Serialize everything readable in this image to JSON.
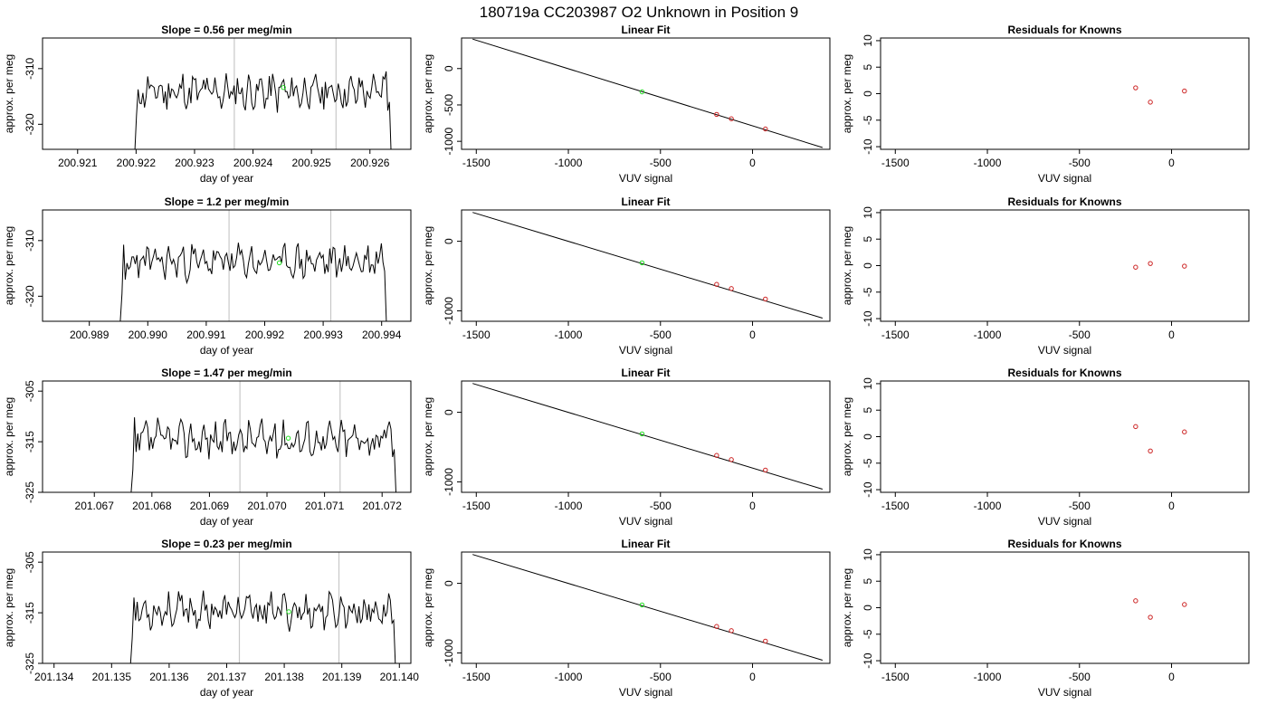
{
  "figure": {
    "title": "180719a      CC203987   O2 Unknown in Position  9"
  },
  "style": {
    "series_color": "#000000",
    "vline_color": "#c8c8c8",
    "known_point_color": "#cc2222",
    "unknown_point_color": "#22dd22",
    "fit_line_color": "#000000"
  },
  "chart_data": [
    {
      "type": "line",
      "panel": "time-series",
      "row": 1,
      "title": "Slope =  0.56  per meg/min",
      "xlabel": "day of year",
      "ylabel": "approx. per meg",
      "xlim": [
        200.9204,
        200.9267
      ],
      "ylim": [
        -324.5,
        -304.5
      ],
      "xticks": [
        "200.921",
        "200.922",
        "200.923",
        "200.924",
        "200.925",
        "200.926"
      ],
      "xtick_values": [
        200.921,
        200.922,
        200.923,
        200.924,
        200.925,
        200.926
      ],
      "yticks": [
        "-320",
        "-310"
      ],
      "ytick_values": [
        -320,
        -310
      ],
      "vlines": [
        200.92368,
        200.92542
      ],
      "trace_start": 200.92198,
      "trace_end": 200.92636,
      "trace_base": -314.2,
      "trace_amplitude": 2.6,
      "trace_rise": [
        -324.5,
        -318.5,
        -316.2
      ],
      "trace_fall": [
        -310.5,
        -316.0,
        -324.5
      ],
      "seed": 11,
      "marker": {
        "x": 200.92452,
        "y": -313.4
      }
    },
    {
      "type": "line",
      "panel": "linear-fit",
      "row": 1,
      "title": "Linear Fit",
      "xlabel": "VUV signal",
      "ylabel": "approx. per meg",
      "xlim": [
        -1580,
        420
      ],
      "ylim": [
        -1110,
        420
      ],
      "xticks": [
        "-1500",
        "-1000",
        "-500",
        "0"
      ],
      "xtick_values": [
        -1500,
        -1000,
        -500,
        0
      ],
      "yticks": [
        "-1000",
        "-500",
        "0"
      ],
      "ytick_values": [
        -1000,
        -500,
        0
      ],
      "line": {
        "x": [
          -1520,
          380
        ],
        "y": [
          405,
          -1085
        ]
      },
      "knowns": [
        {
          "x": -195,
          "y": -630
        },
        {
          "x": -115,
          "y": -690
        },
        {
          "x": 70,
          "y": -830
        }
      ],
      "unknown": {
        "x": -600,
        "y": -320
      }
    },
    {
      "type": "scatter",
      "panel": "residuals",
      "row": 1,
      "title": "Residuals for Knowns",
      "xlabel": "VUV signal",
      "ylabel": "approx. per meg",
      "xlim": [
        -1580,
        420
      ],
      "ylim": [
        -10.5,
        10.5
      ],
      "xticks": [
        "-1500",
        "-1000",
        "-500",
        "0"
      ],
      "xtick_values": [
        -1500,
        -1000,
        -500,
        0
      ],
      "yticks": [
        "-10",
        "-5",
        "0",
        "5",
        "10"
      ],
      "ytick_values": [
        -10,
        -5,
        0,
        5,
        10
      ],
      "points": [
        {
          "x": -195,
          "y": 1.1
        },
        {
          "x": -115,
          "y": -1.6
        },
        {
          "x": 70,
          "y": 0.5
        }
      ]
    },
    {
      "type": "line",
      "panel": "time-series",
      "row": 2,
      "title": "Slope =  1.2  per meg/min",
      "xlabel": "day of year",
      "ylabel": "approx. per meg",
      "xlim": [
        200.9882,
        200.9945
      ],
      "ylim": [
        -324.5,
        -304.5
      ],
      "xticks": [
        "200.989",
        "200.990",
        "200.991",
        "200.992",
        "200.993",
        "200.994"
      ],
      "xtick_values": [
        200.989,
        200.99,
        200.991,
        200.992,
        200.993,
        200.994
      ],
      "yticks": [
        "-320",
        "-310"
      ],
      "ytick_values": [
        -320,
        -310
      ],
      "vlines": [
        200.99139,
        200.99313
      ],
      "trace_start": 200.98953,
      "trace_end": 200.99408,
      "trace_base": -313.8,
      "trace_amplitude": 2.4,
      "trace_rise": [
        -324.5,
        -319.5,
        -317.0
      ],
      "trace_fall": [
        -310.5,
        -315.5,
        -324.5
      ],
      "seed": 23,
      "marker": {
        "x": 200.99225,
        "y": -314.0
      }
    },
    {
      "type": "line",
      "panel": "linear-fit",
      "row": 2,
      "title": "Linear Fit",
      "xlabel": "VUV signal",
      "ylabel": "approx. per meg",
      "xlim": [
        -1580,
        420
      ],
      "ylim": [
        -1150,
        450
      ],
      "xticks": [
        "-1500",
        "-1000",
        "-500",
        "0"
      ],
      "xtick_values": [
        -1500,
        -1000,
        -500,
        0
      ],
      "yticks": [
        "-1000",
        "0"
      ],
      "ytick_values": [
        -1000,
        0
      ],
      "line": {
        "x": [
          -1520,
          380
        ],
        "y": [
          415,
          -1105
        ]
      },
      "knowns": [
        {
          "x": -195,
          "y": -620
        },
        {
          "x": -115,
          "y": -680
        },
        {
          "x": 70,
          "y": -830
        }
      ],
      "unknown": {
        "x": -600,
        "y": -310
      }
    },
    {
      "type": "scatter",
      "panel": "residuals",
      "row": 2,
      "title": "Residuals for Knowns",
      "xlabel": "VUV signal",
      "ylabel": "approx. per meg",
      "xlim": [
        -1580,
        420
      ],
      "ylim": [
        -10.5,
        10.5
      ],
      "xticks": [
        "-1500",
        "-1000",
        "-500",
        "0"
      ],
      "xtick_values": [
        -1500,
        -1000,
        -500,
        0
      ],
      "yticks": [
        "-10",
        "-5",
        "0",
        "5",
        "10"
      ],
      "ytick_values": [
        -10,
        -5,
        0,
        5,
        10
      ],
      "points": [
        {
          "x": -195,
          "y": -0.3
        },
        {
          "x": -115,
          "y": 0.4
        },
        {
          "x": 70,
          "y": -0.1
        }
      ]
    },
    {
      "type": "line",
      "panel": "time-series",
      "row": 3,
      "title": "Slope =  1.47  per meg/min",
      "xlabel": "day of year",
      "ylabel": "approx. per meg",
      "xlim": [
        201.0661,
        201.0725
      ],
      "ylim": [
        -325,
        -303
      ],
      "xticks": [
        "201.067",
        "201.068",
        "201.069",
        "201.070",
        "201.071",
        "201.072"
      ],
      "xtick_values": [
        201.067,
        201.068,
        201.069,
        201.07,
        201.071,
        201.072
      ],
      "yticks": [
        "-325",
        "-315",
        "-305"
      ],
      "ytick_values": [
        -325,
        -315,
        -305
      ],
      "vlines": [
        201.06953,
        201.07127
      ],
      "trace_start": 201.06764,
      "trace_end": 201.07224,
      "trace_base": -314.5,
      "trace_amplitude": 2.8,
      "trace_rise": [
        -325.0,
        -320.5,
        -317.0
      ],
      "trace_fall": [
        -312.5,
        -316.5,
        -325.0
      ],
      "seed": 37,
      "marker": {
        "x": 201.07037,
        "y": -314.3
      }
    },
    {
      "type": "line",
      "panel": "linear-fit",
      "row": 3,
      "title": "Linear Fit",
      "xlabel": "VUV signal",
      "ylabel": "approx. per meg",
      "xlim": [
        -1580,
        420
      ],
      "ylim": [
        -1150,
        450
      ],
      "xticks": [
        "-1500",
        "-1000",
        "-500",
        "0"
      ],
      "xtick_values": [
        -1500,
        -1000,
        -500,
        0
      ],
      "yticks": [
        "-1000",
        "0"
      ],
      "ytick_values": [
        -1000,
        0
      ],
      "line": {
        "x": [
          -1520,
          380
        ],
        "y": [
          415,
          -1105
        ]
      },
      "knowns": [
        {
          "x": -195,
          "y": -620
        },
        {
          "x": -115,
          "y": -680
        },
        {
          "x": 70,
          "y": -830
        }
      ],
      "unknown": {
        "x": -600,
        "y": -310
      }
    },
    {
      "type": "scatter",
      "panel": "residuals",
      "row": 3,
      "title": "Residuals for Knowns",
      "xlabel": "VUV signal",
      "ylabel": "approx. per meg",
      "xlim": [
        -1580,
        420
      ],
      "ylim": [
        -10.5,
        10.5
      ],
      "xticks": [
        "-1500",
        "-1000",
        "-500",
        "0"
      ],
      "xtick_values": [
        -1500,
        -1000,
        -500,
        0
      ],
      "yticks": [
        "-10",
        "-5",
        "0",
        "5",
        "10"
      ],
      "ytick_values": [
        -10,
        -5,
        0,
        5,
        10
      ],
      "points": [
        {
          "x": -195,
          "y": 1.9
        },
        {
          "x": -115,
          "y": -2.7
        },
        {
          "x": 70,
          "y": 0.9
        }
      ]
    },
    {
      "type": "line",
      "panel": "time-series",
      "row": 4,
      "title": "Slope =  0.23  per meg/min",
      "xlabel": "day of year",
      "ylabel": "approx. per meg",
      "xlim": [
        201.1338,
        201.1402
      ],
      "ylim": [
        -325,
        -303
      ],
      "xticks": [
        "201.134",
        "201.135",
        "201.136",
        "201.137",
        "201.138",
        "201.139",
        "201.140"
      ],
      "xtick_values": [
        201.134,
        201.135,
        201.136,
        201.137,
        201.138,
        201.139,
        201.14
      ],
      "yticks": [
        "-325",
        "-315",
        "-305"
      ],
      "ytick_values": [
        -325,
        -315,
        -305
      ],
      "vlines": [
        201.13722,
        201.13895
      ],
      "trace_start": 201.13533,
      "trace_end": 201.13993,
      "trace_base": -314.6,
      "trace_amplitude": 2.6,
      "trace_rise": [
        -325.0,
        -320.0,
        -316.5
      ],
      "trace_fall": [
        -312.5,
        -316.5,
        -325.0
      ],
      "seed": 53,
      "marker": {
        "x": 201.13808,
        "y": -314.8
      }
    },
    {
      "type": "line",
      "panel": "linear-fit",
      "row": 4,
      "title": "Linear Fit",
      "xlabel": "VUV signal",
      "ylabel": "approx. per meg",
      "xlim": [
        -1580,
        420
      ],
      "ylim": [
        -1150,
        450
      ],
      "xticks": [
        "-1500",
        "-1000",
        "-500",
        "0"
      ],
      "xtick_values": [
        -1500,
        -1000,
        -500,
        0
      ],
      "yticks": [
        "-1000",
        "0"
      ],
      "ytick_values": [
        -1000,
        0
      ],
      "line": {
        "x": [
          -1520,
          380
        ],
        "y": [
          415,
          -1105
        ]
      },
      "knowns": [
        {
          "x": -195,
          "y": -620
        },
        {
          "x": -115,
          "y": -680
        },
        {
          "x": 70,
          "y": -830
        }
      ],
      "unknown": {
        "x": -600,
        "y": -310
      }
    },
    {
      "type": "scatter",
      "panel": "residuals",
      "row": 4,
      "title": "Residuals for Knowns",
      "xlabel": "VUV signal",
      "ylabel": "approx. per meg",
      "xlim": [
        -1580,
        420
      ],
      "ylim": [
        -10.5,
        10.5
      ],
      "xticks": [
        "-1500",
        "-1000",
        "-500",
        "0"
      ],
      "xtick_values": [
        -1500,
        -1000,
        -500,
        0
      ],
      "yticks": [
        "-10",
        "-5",
        "0",
        "5",
        "10"
      ],
      "ytick_values": [
        -10,
        -5,
        0,
        5,
        10
      ],
      "points": [
        {
          "x": -195,
          "y": 1.3
        },
        {
          "x": -115,
          "y": -1.8
        },
        {
          "x": 70,
          "y": 0.6
        }
      ]
    }
  ]
}
